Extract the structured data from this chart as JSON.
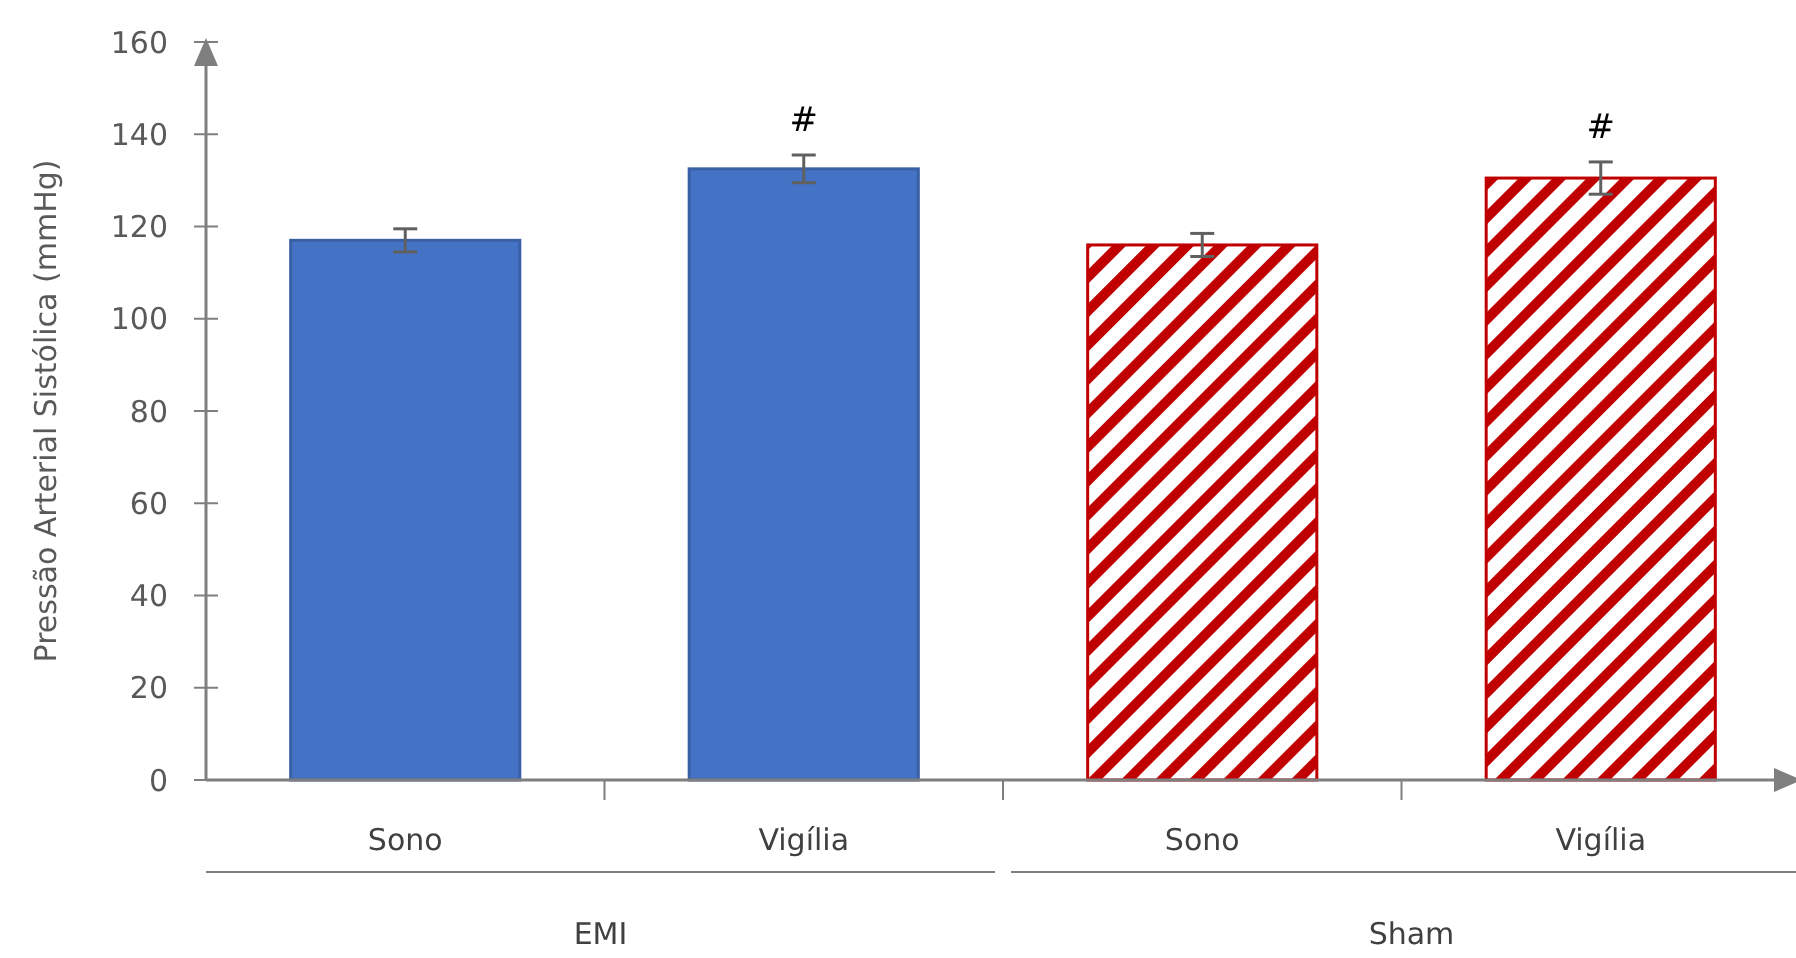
{
  "chart_data": {
    "type": "bar",
    "ylabel": "Pressão Arterial Sistólica (mmHg)",
    "categories": [
      "Sono",
      "Vigília",
      "Sono",
      "Vigília"
    ],
    "series": [
      {
        "color": "#4472c4",
        "values": [
          117,
          132.5,
          null,
          null
        ],
        "errors": [
          2.5,
          3,
          null,
          null
        ],
        "value_labels": [
          null,
          "#",
          null,
          null
        ]
      },
      {
        "color": "#c00000",
        "values": [
          null,
          null,
          116,
          130.5
        ],
        "errors": [
          null,
          null,
          2.5,
          3.5
        ],
        "value_labels": [
          null,
          null,
          null,
          "#"
        ]
      }
    ],
    "annotations": [
      "EMI",
      "Sham"
    ],
    "ylim": [
      0,
      160
    ],
    "yticks": [
      0,
      20,
      40,
      60,
      80,
      100,
      120,
      140,
      160
    ],
    "grid": false
  }
}
